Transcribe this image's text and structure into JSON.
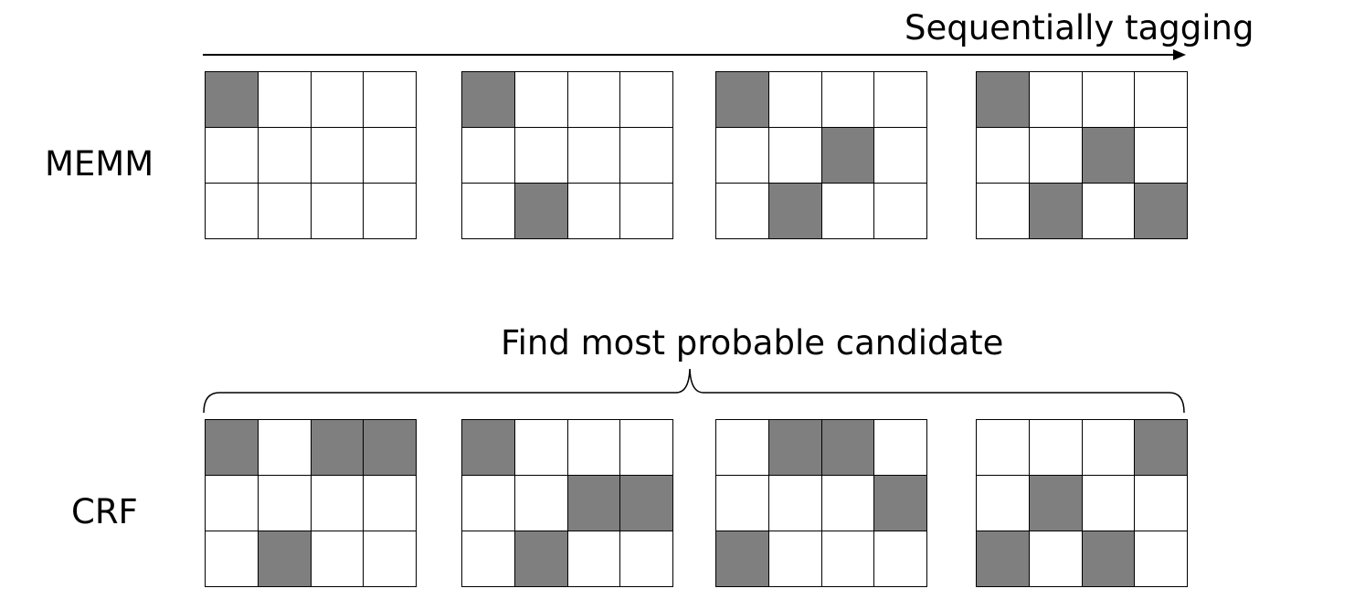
{
  "captions": {
    "sequential": "Sequentially tagging",
    "find": "Find most probable candidate"
  },
  "rows": [
    {
      "label": "MEMM",
      "shade_color": "#7f7f7f",
      "grids": [
        [
          [
            1,
            0,
            0,
            0
          ],
          [
            0,
            0,
            0,
            0
          ],
          [
            0,
            0,
            0,
            0
          ]
        ],
        [
          [
            1,
            0,
            0,
            0
          ],
          [
            0,
            0,
            0,
            0
          ],
          [
            0,
            1,
            0,
            0
          ]
        ],
        [
          [
            1,
            0,
            0,
            0
          ],
          [
            0,
            0,
            1,
            0
          ],
          [
            0,
            1,
            0,
            0
          ]
        ],
        [
          [
            1,
            0,
            0,
            0
          ],
          [
            0,
            0,
            1,
            0
          ],
          [
            0,
            1,
            0,
            1
          ]
        ]
      ]
    },
    {
      "label": "CRF",
      "shade_color": "#7f7f7f",
      "grids": [
        [
          [
            1,
            0,
            1,
            1
          ],
          [
            0,
            0,
            0,
            0
          ],
          [
            0,
            1,
            0,
            0
          ]
        ],
        [
          [
            1,
            0,
            0,
            0
          ],
          [
            0,
            0,
            1,
            1
          ],
          [
            0,
            1,
            0,
            0
          ]
        ],
        [
          [
            0,
            1,
            1,
            0
          ],
          [
            0,
            0,
            0,
            1
          ],
          [
            1,
            0,
            0,
            0
          ]
        ],
        [
          [
            0,
            0,
            0,
            1
          ],
          [
            0,
            1,
            0,
            0
          ],
          [
            1,
            0,
            1,
            0
          ]
        ]
      ]
    }
  ],
  "connectors": {
    "sequential": "right-arrow-over-memm-row",
    "find": "curly-brace-over-crf-row"
  }
}
